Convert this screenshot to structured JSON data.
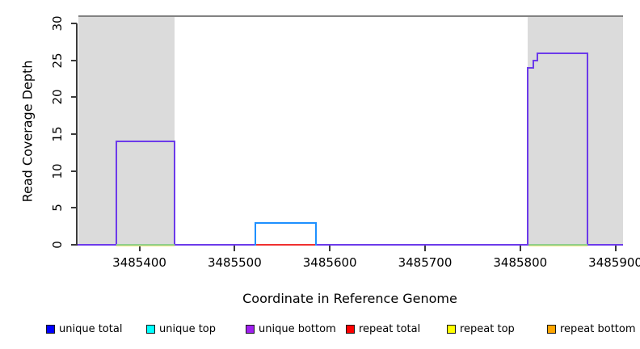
{
  "axes": {
    "x": {
      "title": "Coordinate in Reference Genome",
      "tick_labels": [
        "3485400",
        "3485500",
        "3485600",
        "3485700",
        "3485800",
        "3485900"
      ],
      "tick_values": [
        3485400,
        3485500,
        3485600,
        3485700,
        3485800,
        3485900
      ]
    },
    "y": {
      "title": "Read Coverage Depth",
      "tick_labels": [
        "0",
        "5",
        "10",
        "15",
        "20",
        "25",
        "30"
      ],
      "tick_values": [
        0,
        5,
        10,
        15,
        20,
        25,
        30
      ]
    }
  },
  "legend": {
    "items": [
      {
        "label": "unique total",
        "color": "#0000FF"
      },
      {
        "label": "unique top",
        "color": "#00FFFF"
      },
      {
        "label": "unique bottom",
        "color": "#A020F0"
      },
      {
        "label": "repeat total",
        "color": "#FF0000"
      },
      {
        "label": "repeat top",
        "color": "#FFFF00"
      },
      {
        "label": "repeat bottom",
        "color": "#FFA500"
      }
    ]
  },
  "chart_data": {
    "type": "step",
    "xlabel": "Coordinate in Reference Genome",
    "ylabel": "Read Coverage Depth",
    "xlim": [
      3485335,
      3485908
    ],
    "ylim": [
      0,
      31
    ],
    "grid": false,
    "legend_position": "bottom",
    "shade_color": "#DBDBDB",
    "shaded_regions": [
      {
        "x0": 3485336,
        "x1": 3485437
      },
      {
        "x0": 3485808,
        "x1": 3485908
      }
    ],
    "series": [
      {
        "name": "clipped-total-line",
        "color": "#828282",
        "points": [
          [
            3485336,
            31
          ],
          [
            3485908,
            31
          ]
        ]
      },
      {
        "name": "unique-bottom-coverage",
        "color": "#6C3AEA",
        "points": [
          [
            3485335,
            0
          ],
          [
            3485376,
            0
          ],
          [
            3485376,
            14
          ],
          [
            3485437,
            14
          ],
          [
            3485437,
            0
          ],
          [
            3485808,
            0
          ],
          [
            3485808,
            24
          ],
          [
            3485814,
            24
          ],
          [
            3485814,
            25
          ],
          [
            3485818,
            25
          ],
          [
            3485818,
            26
          ],
          [
            3485871,
            26
          ],
          [
            3485871,
            0
          ],
          [
            3485908,
            0
          ]
        ]
      },
      {
        "name": "baseline-green-left",
        "color": "#8FCE8F",
        "points": [
          [
            3485376,
            0
          ],
          [
            3485437,
            0
          ]
        ]
      },
      {
        "name": "baseline-green-right",
        "color": "#8FCE8F",
        "points": [
          [
            3485809,
            0
          ],
          [
            3485871,
            0
          ]
        ]
      },
      {
        "name": "baseline-yellow-left",
        "color": "#EFE97F",
        "points": [
          [
            3485376,
            0
          ],
          [
            3485437,
            0
          ]
        ]
      },
      {
        "name": "baseline-yellow-right",
        "color": "#EFE97F",
        "points": [
          [
            3485809,
            0
          ],
          [
            3485871,
            0
          ]
        ]
      },
      {
        "name": "repeat-total-baseline",
        "color": "#F03030",
        "points": [
          [
            3485522,
            0
          ],
          [
            3485585,
            0
          ]
        ]
      },
      {
        "name": "unique-total-box",
        "color": "#1E90FF",
        "points": [
          [
            3485522,
            0
          ],
          [
            3485522,
            3
          ],
          [
            3485585,
            3
          ],
          [
            3485585,
            0
          ]
        ]
      }
    ]
  }
}
